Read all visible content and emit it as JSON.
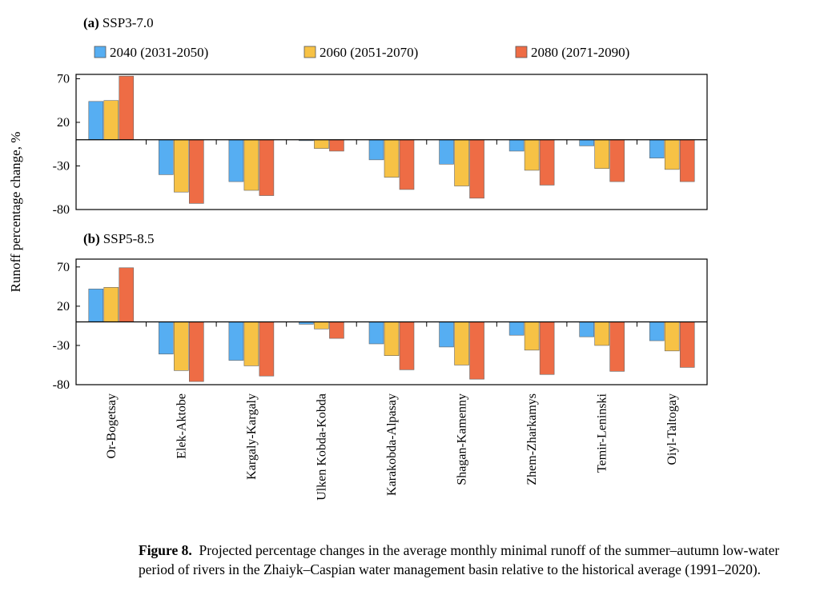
{
  "chart_data": [
    {
      "type": "bar",
      "panel_label": "(a)",
      "title": "SSP3-7.0",
      "ylabel": "Runoff percentage change, %",
      "ylim": [
        -80,
        75
      ],
      "yticks": [
        70,
        20,
        -30,
        -80
      ],
      "categories": [
        "Or-Bogetsay",
        "Elek-Aktobe",
        "Kargaly-Kargaly",
        "Ulken Kobda-Kobda",
        "Karakobda-Alpasay",
        "Shagan-Kamenny",
        "Zhem-Zharkamys",
        "Temir-Leninski",
        "Oiyl-Taltogay"
      ],
      "series": [
        {
          "name": "2040 (2031-2050)",
          "color": "#56aef2",
          "values": [
            44,
            -40,
            -48,
            -1,
            -23,
            -28,
            -13,
            -7,
            -21
          ]
        },
        {
          "name": "2060 (2051-2070)",
          "color": "#f7c245",
          "values": [
            45,
            -60,
            -58,
            -10,
            -43,
            -53,
            -35,
            -33,
            -34
          ]
        },
        {
          "name": "2080 (2071-2090)",
          "color": "#ee6c45",
          "values": [
            73,
            -73,
            -64,
            -13,
            -57,
            -67,
            -52,
            -48,
            -48
          ]
        }
      ],
      "legend_position": "top",
      "grid": false
    },
    {
      "type": "bar",
      "panel_label": "(b)",
      "title": "SSP5-8.5",
      "ylim": [
        -80,
        80
      ],
      "yticks": [
        70,
        20,
        -30,
        -80
      ],
      "categories": [
        "Or-Bogetsay",
        "Elek-Aktobe",
        "Kargaly-Kargaly",
        "Ulken Kobda-Kobda",
        "Karakobda-Alpasay",
        "Shagan-Kamenny",
        "Zhem-Zharkamys",
        "Temir-Leninski",
        "Oiyl-Taltogay"
      ],
      "series": [
        {
          "name": "2040 (2031-2050)",
          "color": "#56aef2",
          "values": [
            42,
            -41,
            -49,
            -3,
            -28,
            -32,
            -17,
            -19,
            -24
          ]
        },
        {
          "name": "2060 (2051-2070)",
          "color": "#f7c245",
          "values": [
            44,
            -62,
            -56,
            -9,
            -43,
            -55,
            -36,
            -30,
            -37
          ]
        },
        {
          "name": "2080 (2071-2090)",
          "color": "#ee6c45",
          "values": [
            69,
            -76,
            -69,
            -21,
            -61,
            -73,
            -67,
            -63,
            -58
          ]
        }
      ],
      "grid": false
    }
  ],
  "caption": {
    "label": "Figure 8.",
    "text": "Projected percentage changes in the average monthly minimal runoff of the summer–autumn low-water period of rivers in the Zhaiyk–Caspian water management basin relative to the historical average (1991–2020)."
  }
}
